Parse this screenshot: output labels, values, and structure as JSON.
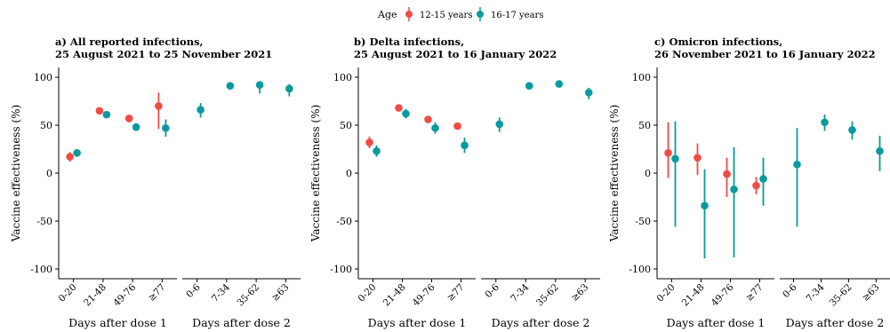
{
  "legend": {
    "title": "Age",
    "items": [
      {
        "label": "12-15 years",
        "color": "#f04b45"
      },
      {
        "label": "16-17 years",
        "color": "#089a9f"
      }
    ]
  },
  "panels": [
    {
      "title_line1": "a) All reported infections,",
      "title_line2": "25 August 2021 to 25 November 2021"
    },
    {
      "title_line1": "b) Delta infections,",
      "title_line2": "25 August 2021 to 16 January 2022"
    },
    {
      "title_line1": "c) Omicron infections,",
      "title_line2": "26 November 2021 to 16 January 2022"
    }
  ],
  "chart_data": [
    {
      "type": "scatter",
      "title": "a) All reported infections, 25 August 2021 to 25 November 2021",
      "ylabel": "Vaccine effectiveness (%)",
      "ylim": [
        -110,
        110
      ],
      "yticks": [
        100,
        50,
        0,
        -50,
        -100
      ],
      "groups": [
        {
          "label": "Days after dose 1",
          "categories": [
            "0-20",
            "21-48",
            "49-76",
            "≥77"
          ]
        },
        {
          "label": "Days after dose 2",
          "categories": [
            "0-6",
            "7-34",
            "35-62",
            "≥63"
          ]
        }
      ],
      "series": [
        {
          "name": "12-15 years",
          "color": "#f04b45",
          "points": [
            {
              "group": 0,
              "category": "0-20",
              "y": 17,
              "lo": 12,
              "hi": 22
            },
            {
              "group": 0,
              "category": "21-48",
              "y": 65,
              "lo": 62,
              "hi": 67
            },
            {
              "group": 0,
              "category": "49-76",
              "y": 57,
              "lo": 53,
              "hi": 60
            },
            {
              "group": 0,
              "category": "≥77",
              "y": 70,
              "lo": 46,
              "hi": 84
            }
          ]
        },
        {
          "name": "16-17 years",
          "color": "#089a9f",
          "points": [
            {
              "group": 0,
              "category": "0-20",
              "y": 21,
              "lo": 18,
              "hi": 24
            },
            {
              "group": 0,
              "category": "21-48",
              "y": 61,
              "lo": 58,
              "hi": 64
            },
            {
              "group": 0,
              "category": "49-76",
              "y": 48,
              "lo": 44,
              "hi": 52
            },
            {
              "group": 0,
              "category": "≥77",
              "y": 47,
              "lo": 38,
              "hi": 56
            },
            {
              "group": 1,
              "category": "0-6",
              "y": 66,
              "lo": 58,
              "hi": 73
            },
            {
              "group": 1,
              "category": "7-34",
              "y": 91,
              "lo": 89,
              "hi": 92
            },
            {
              "group": 1,
              "category": "35-62",
              "y": 92,
              "lo": 83,
              "hi": 96
            },
            {
              "group": 1,
              "category": "≥63",
              "y": 88,
              "lo": 80,
              "hi": 93
            }
          ]
        }
      ]
    },
    {
      "type": "scatter",
      "title": "b) Delta infections, 25 August 2021 to 16 January 2022",
      "ylabel": "Vaccine effectiveness (%)",
      "ylim": [
        -110,
        110
      ],
      "yticks": [
        100,
        50,
        0,
        -50,
        -100
      ],
      "groups": [
        {
          "label": "Days after dose 1",
          "categories": [
            "0-20",
            "21-48",
            "49-76",
            "≥77"
          ]
        },
        {
          "label": "Days after dose 2",
          "categories": [
            "0-6",
            "7-34",
            "35-62",
            "≥63"
          ]
        }
      ],
      "series": [
        {
          "name": "12-15 years",
          "color": "#f04b45",
          "points": [
            {
              "group": 0,
              "category": "0-20",
              "y": 32,
              "lo": 26,
              "hi": 38
            },
            {
              "group": 0,
              "category": "21-48",
              "y": 68,
              "lo": 66,
              "hi": 70
            },
            {
              "group": 0,
              "category": "49-76",
              "y": 56,
              "lo": 53,
              "hi": 59
            },
            {
              "group": 0,
              "category": "≥77",
              "y": 49,
              "lo": 46,
              "hi": 51
            }
          ]
        },
        {
          "name": "16-17 years",
          "color": "#089a9f",
          "points": [
            {
              "group": 0,
              "category": "0-20",
              "y": 23,
              "lo": 17,
              "hi": 29
            },
            {
              "group": 0,
              "category": "21-48",
              "y": 62,
              "lo": 57,
              "hi": 67
            },
            {
              "group": 0,
              "category": "49-76",
              "y": 47,
              "lo": 41,
              "hi": 53
            },
            {
              "group": 0,
              "category": "≥77",
              "y": 29,
              "lo": 21,
              "hi": 37
            },
            {
              "group": 1,
              "category": "0-6",
              "y": 51,
              "lo": 43,
              "hi": 58
            },
            {
              "group": 1,
              "category": "7-34",
              "y": 91,
              "lo": 89,
              "hi": 92
            },
            {
              "group": 1,
              "category": "35-62",
              "y": 93,
              "lo": 90,
              "hi": 95
            },
            {
              "group": 1,
              "category": "≥63",
              "y": 84,
              "lo": 77,
              "hi": 89
            }
          ]
        }
      ]
    },
    {
      "type": "scatter",
      "title": "c) Omicron infections, 26 November 2021 to 16 January 2022",
      "ylabel": "Vaccine effectiveness (%)",
      "ylim": [
        -110,
        110
      ],
      "yticks": [
        100,
        50,
        0,
        -50,
        -100
      ],
      "groups": [
        {
          "label": "Days after dose 1",
          "categories": [
            "0-20",
            "21-48",
            "49-76",
            "≥77"
          ]
        },
        {
          "label": "Days after dose 2",
          "categories": [
            "0-6",
            "7-34",
            "35-62",
            "≥63"
          ]
        }
      ],
      "series": [
        {
          "name": "12-15 years",
          "color": "#f04b45",
          "points": [
            {
              "group": 0,
              "category": "0-20",
              "y": 21,
              "lo": -5,
              "hi": 53
            },
            {
              "group": 0,
              "category": "21-48",
              "y": 16,
              "lo": -2,
              "hi": 31
            },
            {
              "group": 0,
              "category": "49-76",
              "y": -1,
              "lo": -25,
              "hi": 16
            },
            {
              "group": 0,
              "category": "≥77",
              "y": -13,
              "lo": -22,
              "hi": -4
            }
          ]
        },
        {
          "name": "16-17 years",
          "color": "#089a9f",
          "points": [
            {
              "group": 0,
              "category": "0-20",
              "y": 15,
              "lo": -56,
              "hi": 54
            },
            {
              "group": 0,
              "category": "21-48",
              "y": -34,
              "lo": -89,
              "hi": 4
            },
            {
              "group": 0,
              "category": "49-76",
              "y": -17,
              "lo": -88,
              "hi": 27
            },
            {
              "group": 0,
              "category": "≥77",
              "y": -6,
              "lo": -34,
              "hi": 16
            },
            {
              "group": 1,
              "category": "0-6",
              "y": 9,
              "lo": -56,
              "hi": 47
            },
            {
              "group": 1,
              "category": "7-34",
              "y": 53,
              "lo": 44,
              "hi": 61
            },
            {
              "group": 1,
              "category": "35-62",
              "y": 45,
              "lo": 35,
              "hi": 54
            },
            {
              "group": 1,
              "category": "≥63",
              "y": 23,
              "lo": 2,
              "hi": 39
            }
          ]
        }
      ]
    }
  ]
}
